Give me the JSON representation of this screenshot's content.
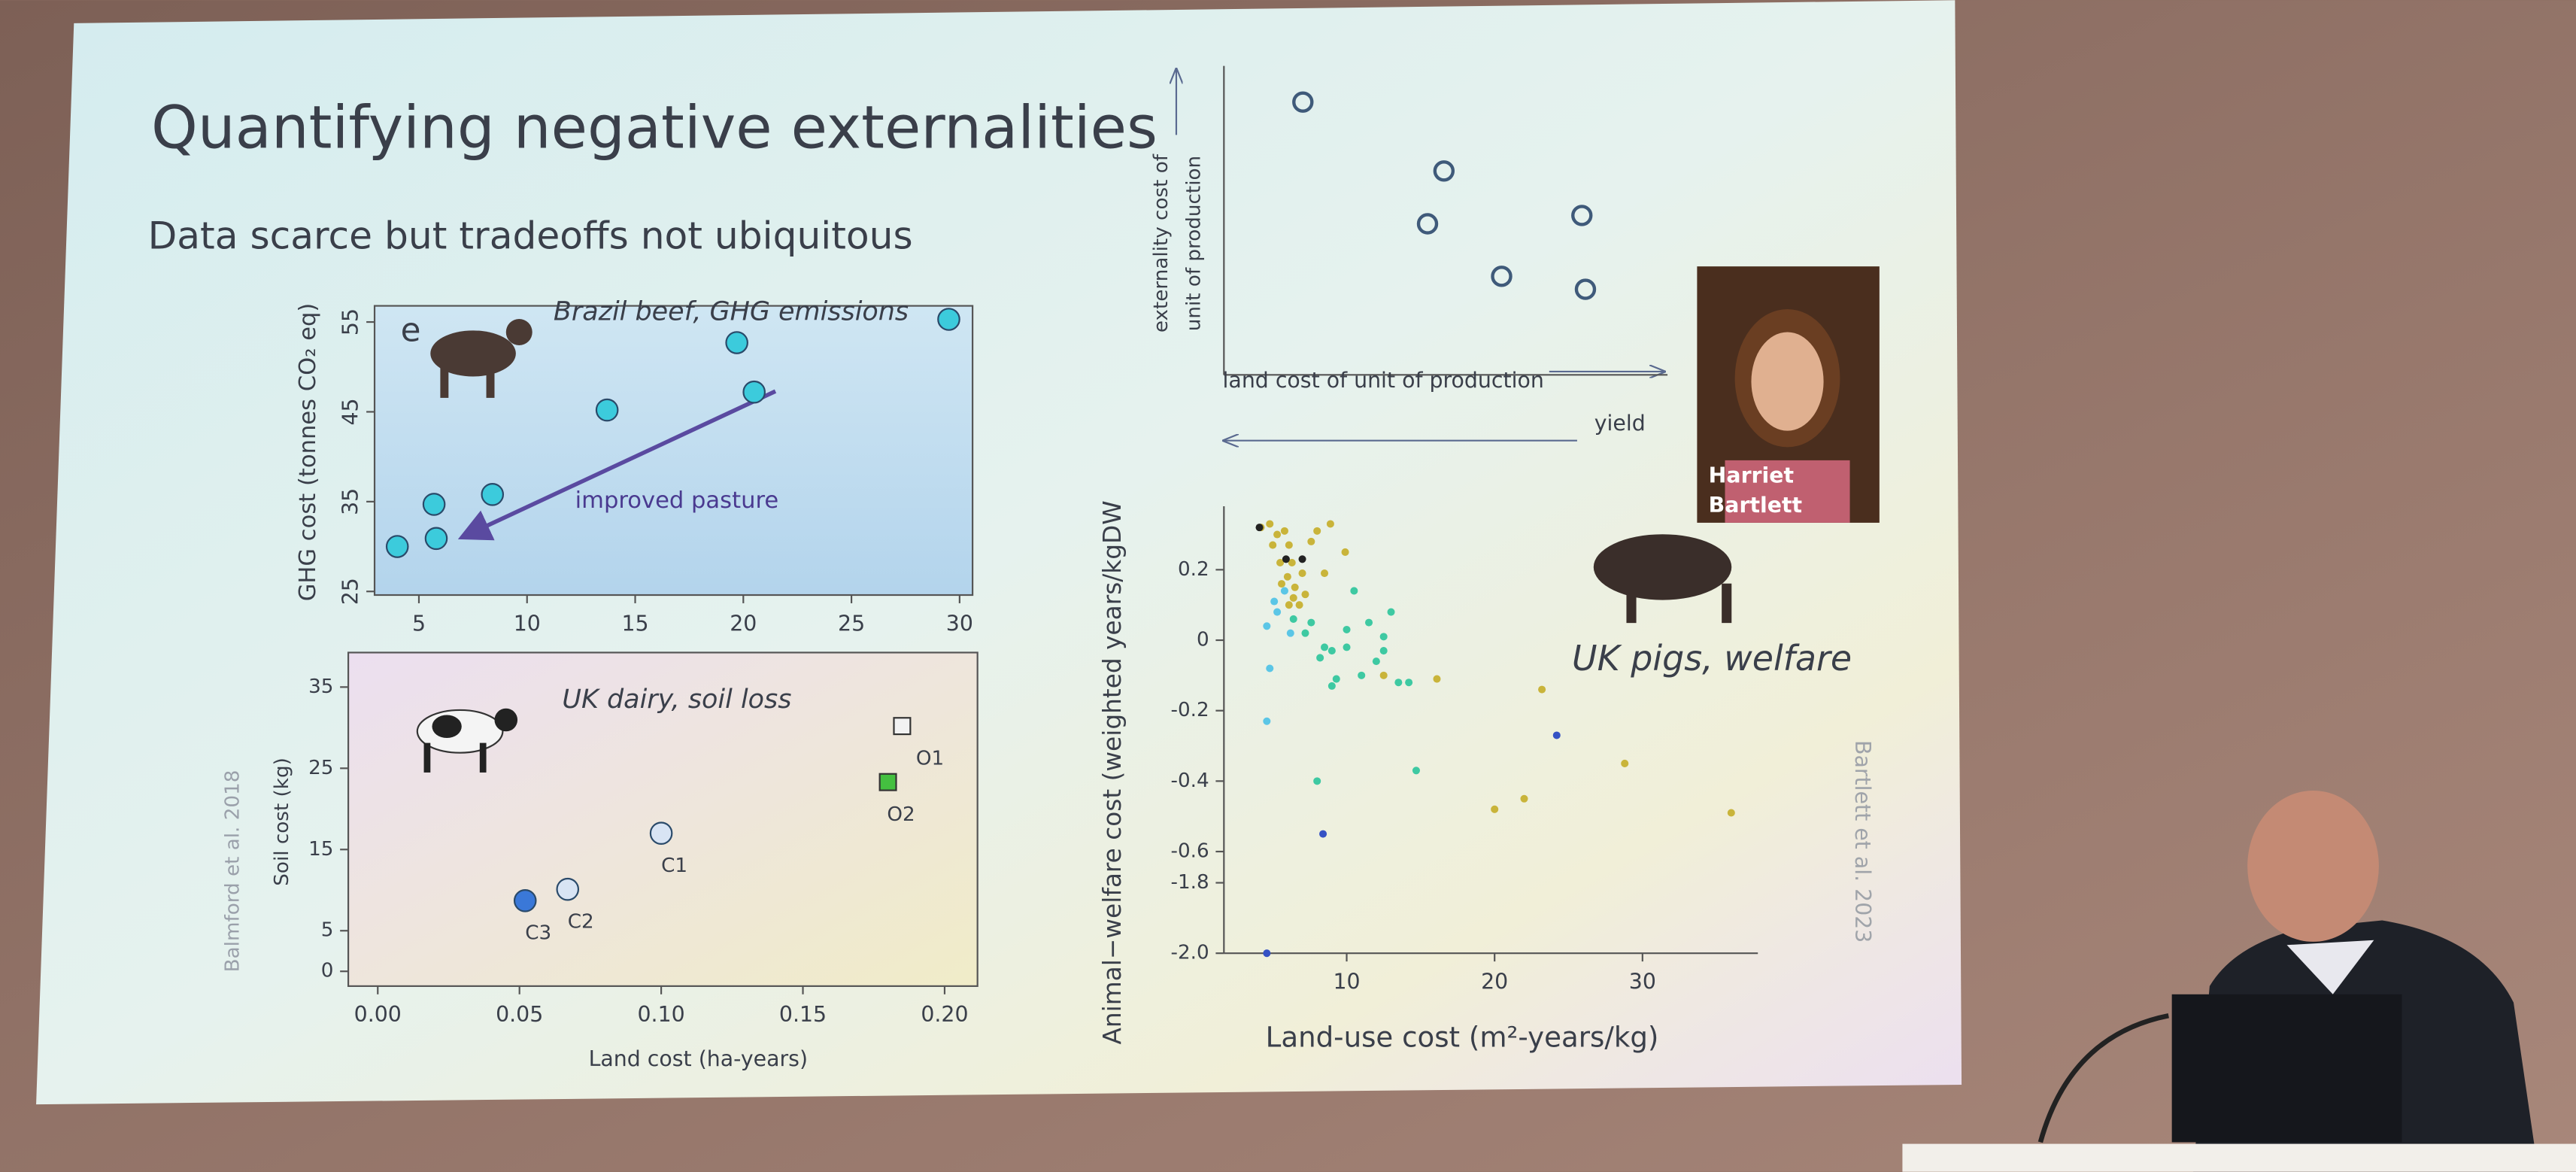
{
  "slide": {
    "title": "Quantifying negative externalities",
    "subtitle": "Data scarce but tradeoffs not ubiquitous",
    "photo_caption": [
      "Harriet",
      "Bartlett"
    ],
    "citations": [
      "Balmford et al. 2018",
      "Bartlett et al. 2023"
    ]
  },
  "chart_data": [
    {
      "type": "scatter",
      "title": "Brazil beef, GHG emissions",
      "panel_label": "e",
      "x": [
        4,
        5.7,
        5.8,
        8.4,
        13.7,
        19.7,
        20.5,
        29.5
      ],
      "y": [
        30,
        34.7,
        30.9,
        35.8,
        45.2,
        52.7,
        47.2,
        55.3
      ],
      "color": "#3ccbdc",
      "xlim": [
        2.95,
        30.6
      ],
      "ylim": [
        24.6,
        56.8
      ],
      "xticks": [
        5,
        10,
        15,
        20,
        25,
        30
      ],
      "yticks": [
        25,
        35,
        45,
        55
      ],
      "ylabel": "GHG cost (tonnes CO₂ eq)",
      "annotation": "improved pasture"
    },
    {
      "type": "scatter",
      "title": "UK dairy, soil loss",
      "x": [
        0.052,
        0.067,
        0.1,
        0.185,
        0.18
      ],
      "y": [
        8.7,
        10.1,
        17.0,
        30.2,
        23.3
      ],
      "point_labels": [
        "C3",
        "C2",
        "C1",
        "O1",
        "O2"
      ],
      "markers": [
        "circle",
        "circle",
        "circle",
        "square",
        "square"
      ],
      "colors": [
        "#3a78d8",
        "#d8e4f4",
        "#d8e4f4",
        "#f2f2f2",
        "#44c040"
      ],
      "xlim": [
        -0.0104,
        0.2116
      ],
      "ylim": [
        -1.82,
        39.25
      ],
      "xticks": [
        {
          "value": 0,
          "label": "0.00"
        },
        {
          "value": 0.05,
          "label": "0.05"
        },
        {
          "value": 0.1,
          "label": "0.10"
        },
        {
          "value": 0.15,
          "label": "0.15"
        },
        {
          "value": 0.2,
          "label": "0.20"
        }
      ],
      "yticks": [
        0,
        5,
        15,
        25,
        35
      ],
      "xlabel": "Land cost (ha-years)",
      "ylabel": "Soil cost (kg)"
    },
    {
      "type": "scatter",
      "x": [
        17.8,
        49.6,
        45.9,
        80.7,
        62.6,
        81.5
      ],
      "y": [
        88.3,
        66.0,
        48.9,
        51.6,
        31.9,
        27.7
      ],
      "xlim": [
        0,
        100
      ],
      "ylim": [
        0,
        100
      ],
      "xlabel": "land cost of unit of production",
      "ylabel": [
        "externality cost of",
        "unit of production"
      ],
      "x2label": "yield"
    },
    {
      "type": "scatter",
      "title": "UK pigs, welfare",
      "x": [
        4.2,
        4.8,
        5.3,
        5.8,
        6.1,
        5.0,
        5.5,
        6.3,
        6.0,
        6.5,
        6.4,
        7.0,
        7.2,
        6.8,
        6.1,
        5.6,
        7.6,
        8.0,
        8.9,
        9.9,
        8.5,
        16.1,
        23.2,
        20.0,
        22.0,
        28.8,
        36.0,
        12.5,
        4.1,
        5.9,
        7.0,
        4.6,
        5.3,
        5.8,
        4.8,
        4.6,
        6.2,
        5.1,
        6.4,
        7.2,
        7.6,
        8.2,
        8.5,
        9.0,
        9.3,
        9.0,
        10.0,
        10.5,
        11.5,
        12.0,
        12.5,
        13.0,
        13.5,
        14.2,
        8.0,
        14.7,
        10.0,
        11.0,
        12.5,
        24.2,
        8.4,
        4.6
      ],
      "y": [
        0.32,
        0.33,
        0.3,
        0.31,
        0.27,
        0.27,
        0.22,
        0.22,
        0.18,
        0.15,
        0.12,
        0.19,
        0.13,
        0.1,
        0.1,
        0.16,
        0.28,
        0.31,
        0.33,
        0.25,
        0.19,
        -0.11,
        -0.14,
        -0.48,
        -0.45,
        -0.35,
        -0.49,
        -0.1,
        0.32,
        0.23,
        0.23,
        0.04,
        0.08,
        0.14,
        -0.08,
        -0.23,
        0.02,
        0.11,
        0.06,
        0.02,
        0.05,
        -0.05,
        -0.02,
        -0.03,
        -0.11,
        -0.13,
        0.03,
        0.14,
        0.05,
        -0.06,
        -0.03,
        0.08,
        -0.12,
        -0.12,
        -0.4,
        -0.37,
        -0.02,
        -0.1,
        0.01,
        -0.27,
        -0.55,
        -2.0
      ],
      "colors": [
        "#c9b43a",
        "#c9b43a",
        "#c9b43a",
        "#c9b43a",
        "#c9b43a",
        "#c9b43a",
        "#c9b43a",
        "#c9b43a",
        "#c9b43a",
        "#c9b43a",
        "#c9b43a",
        "#c9b43a",
        "#c9b43a",
        "#c9b43a",
        "#c9b43a",
        "#c9b43a",
        "#c9b43a",
        "#c9b43a",
        "#c9b43a",
        "#c9b43a",
        "#c9b43a",
        "#c9b43a",
        "#c9b43a",
        "#c9b43a",
        "#c9b43a",
        "#c9b43a",
        "#c9b43a",
        "#c9b43a",
        "#222222",
        "#222222",
        "#222222",
        "#5bc6e6",
        "#5bc6e6",
        "#5bc6e6",
        "#5bc6e6",
        "#5bc6e6",
        "#5bc6e6",
        "#5bc6e6",
        "#3ec9a2",
        "#3ec9a2",
        "#3ec9a2",
        "#3ec9a2",
        "#3ec9a2",
        "#3ec9a2",
        "#3ec9a2",
        "#3ec9a2",
        "#3ec9a2",
        "#3ec9a2",
        "#3ec9a2",
        "#3ec9a2",
        "#3ec9a2",
        "#3ec9a2",
        "#3ec9a2",
        "#3ec9a2",
        "#3ec9a2",
        "#3ec9a2",
        "#3ec9a2",
        "#3ec9a2",
        "#3ec9a2",
        "#3552c4",
        "#3552c4",
        "#3552c4"
      ],
      "xlim": [
        1.7,
        37.8
      ],
      "ylim": [
        -2.0,
        0.38
      ],
      "xticks": [
        10,
        20,
        30
      ],
      "yticks": [
        0.2,
        0,
        -0.2,
        -0.4,
        -0.6,
        -1.8,
        {
          "value": -2.0,
          "label": "-2.0"
        }
      ],
      "xlabel": "Land-use cost (m²-years/kg)",
      "ylabel": "Animal−welfare cost (weighted years/kgDW"
    }
  ]
}
